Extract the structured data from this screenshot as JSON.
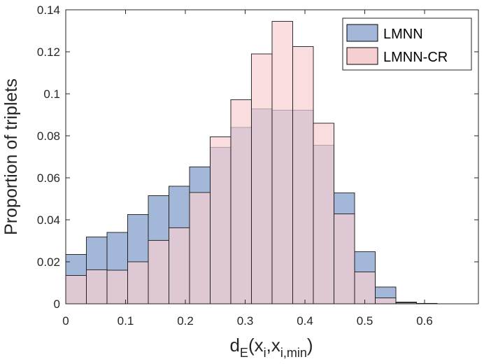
{
  "chart_data": {
    "type": "bar",
    "subtype": "overlapping-histogram",
    "title": "",
    "xlabel": {
      "main": "d",
      "sub1": "E",
      "mid": "(x",
      "sub2": "i",
      "comma": ",x",
      "sub3": "i,min",
      "end": ")"
    },
    "ylabel": "Proportion of triplets",
    "xlim": [
      0,
      0.69
    ],
    "ylim": [
      0,
      0.14
    ],
    "xticks": [
      0,
      0.1,
      0.2,
      0.3,
      0.4,
      0.5,
      0.6
    ],
    "xtick_labels": [
      "0",
      "0.1",
      "0.2",
      "0.3",
      "0.4",
      "0.5",
      "0.6"
    ],
    "yticks": [
      0,
      0.02,
      0.04,
      0.06,
      0.08,
      0.1,
      0.12,
      0.14
    ],
    "ytick_labels": [
      "0",
      "0.02",
      "0.04",
      "0.06",
      "0.08",
      "0.1",
      "0.12",
      "0.14"
    ],
    "bin_edges": [
      0,
      0.0345,
      0.069,
      0.1035,
      0.138,
      0.1725,
      0.207,
      0.2415,
      0.276,
      0.3105,
      0.345,
      0.3795,
      0.414,
      0.4485,
      0.483,
      0.5175,
      0.552,
      0.5865,
      0.621,
      0.6555,
      0.69
    ],
    "series": [
      {
        "name": "LMNN",
        "color": "#a3b7d8",
        "values": [
          0.0235,
          0.0318,
          0.034,
          0.0425,
          0.0515,
          0.056,
          0.0652,
          0.0745,
          0.084,
          0.0928,
          0.0922,
          0.0922,
          0.0755,
          0.0528,
          0.0248,
          0.008,
          0.0008,
          0.0002,
          0.0,
          0.0
        ]
      },
      {
        "name": "LMNN-CR",
        "color": "#f6cfd2",
        "values": [
          0.0135,
          0.0162,
          0.016,
          0.02,
          0.0302,
          0.0362,
          0.053,
          0.0795,
          0.0972,
          0.119,
          0.1345,
          0.1225,
          0.086,
          0.0428,
          0.0152,
          0.0028,
          0.0005,
          0.0001,
          0.0,
          0.0
        ]
      }
    ],
    "legend": {
      "position": "top-right",
      "entries": [
        "LMNN",
        "LMNN-CR"
      ]
    },
    "grid": false
  }
}
